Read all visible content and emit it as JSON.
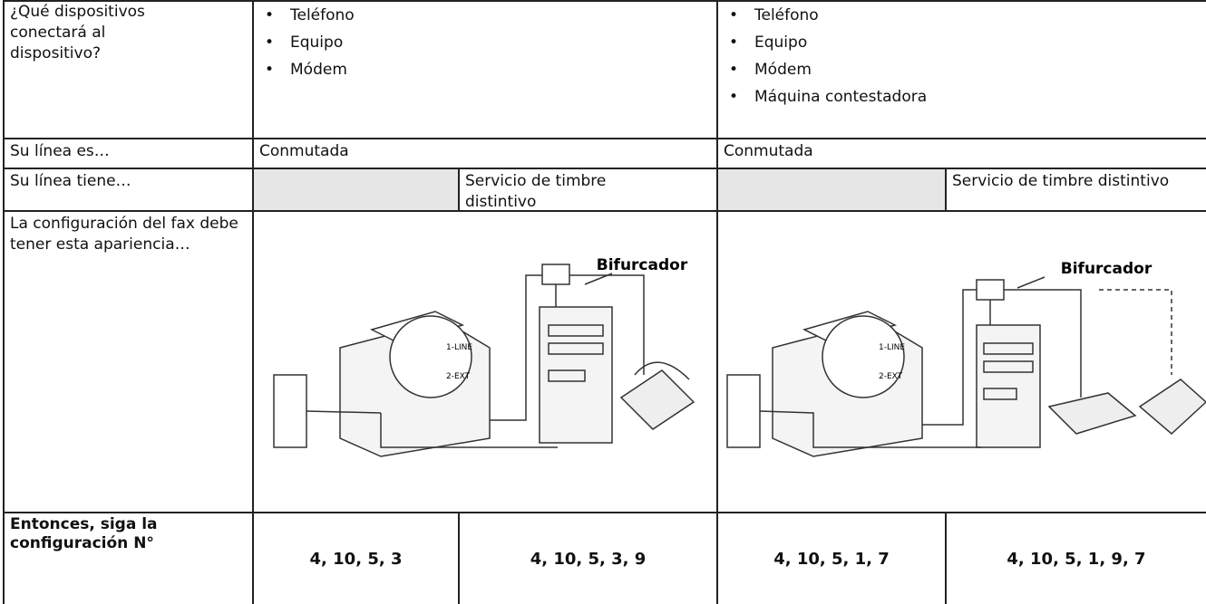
{
  "devices": {
    "label": "¿Qué dispositivos conectará al dispositivo?",
    "option_a": [
      "Teléfono",
      "Equipo",
      "Módem"
    ],
    "option_b": [
      "Teléfono",
      "Equipo",
      "Módem",
      "Máquina contestadora"
    ]
  },
  "line_type": {
    "label": "Su línea es…",
    "option_a": "Conmutada",
    "option_b": "Conmutada"
  },
  "line_has": {
    "label": "Su línea tiene…",
    "option_a": "Servicio de timbre distintivo",
    "option_b": "Servicio de timbre distintivo"
  },
  "setup": {
    "label": "La configuración del fax debe tener esta apariencia…",
    "option_a": {
      "splitter": "Bifurcador",
      "port1": "1-LINE",
      "port2": "2-EXT"
    },
    "option_b": {
      "splitter": "Bifurcador",
      "port1": "1-LINE",
      "port2": "2-EXT"
    }
  },
  "result": {
    "label": "Entonces, siga la configuración N°",
    "values": [
      "4, 10, 5, 3",
      "4, 10, 5, 3, 9",
      "4, 10, 5, 1, 7",
      "4, 10, 5, 1, 9, 7"
    ]
  }
}
